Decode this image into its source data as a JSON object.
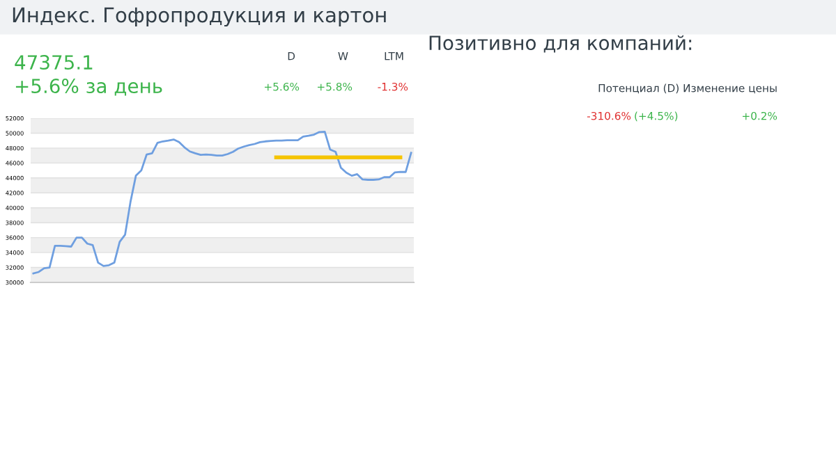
{
  "chart_data": [
    {
      "type": "line",
      "title": "Индекс. Гофропродукция и картон",
      "annotations": [
        "47375.1",
        "+5.6% за день",
        "D",
        "W",
        "LTM",
        "+5.6%",
        "+5.8%",
        "-1.3%"
      ],
      "categories": [
        null,
        null,
        null,
        null,
        null,
        null,
        null,
        null,
        null,
        null,
        null,
        null,
        null,
        null,
        null,
        null,
        null,
        null,
        null,
        null,
        null,
        null,
        null,
        null,
        null,
        null,
        null,
        null,
        null,
        null,
        null,
        null,
        null,
        null,
        null,
        null,
        null,
        null,
        null,
        null,
        null,
        null,
        null,
        null,
        null,
        null,
        null,
        null,
        null,
        null,
        null,
        null,
        null,
        null,
        null,
        null,
        null,
        null,
        null,
        null,
        null,
        null,
        null,
        null,
        null,
        null,
        null,
        null,
        null,
        null,
        null
      ],
      "series": [
        {
          "color": "#6f9fe0",
          "values": [
            31200,
            31400,
            31900,
            32000,
            34900,
            34900,
            34850,
            34800,
            36000,
            36000,
            35200,
            35000,
            32650,
            32200,
            32300,
            32650,
            35450,
            36400,
            40800,
            44300,
            45000,
            47150,
            47300,
            48700,
            48900,
            49000,
            49150,
            48800,
            48100,
            47550,
            47300,
            47100,
            47150,
            47100,
            47000,
            47000,
            47200,
            47500,
            47950,
            48200,
            48400,
            48550,
            48800,
            48900,
            48950,
            49000,
            49000,
            49050,
            49050,
            49050,
            49550,
            49650,
            49800,
            50150,
            50200,
            47800,
            47500,
            45350,
            44700,
            44300,
            44500,
            43800,
            43750,
            43750,
            43800,
            44100,
            44100,
            44750,
            44800,
            44800,
            47375.1
          ]
        },
        {
          "color": "#f5c400",
          "values": [
            null,
            null,
            null,
            null,
            null,
            null,
            null,
            null,
            null,
            null,
            null,
            null,
            null,
            null,
            null,
            null,
            null,
            null,
            null,
            null,
            null,
            null,
            null,
            null,
            null,
            null,
            null,
            null,
            null,
            null,
            null,
            null,
            null,
            null,
            null,
            null,
            null,
            null,
            null,
            null,
            null,
            null,
            null,
            null,
            null,
            46750,
            46750,
            46750,
            46750,
            46750,
            46750,
            46750,
            46750,
            46750,
            46750,
            46750,
            46750,
            46750,
            46750,
            46750,
            46750,
            46750,
            46750,
            46750,
            46750,
            46750,
            46750,
            46750,
            46750,
            null,
            null
          ]
        }
      ],
      "ylim": [
        30000,
        52000
      ],
      "yticks": [
        30000,
        32000,
        34000,
        36000,
        38000,
        40000,
        42000,
        44000,
        46000,
        48000,
        50000,
        52000
      ],
      "grid": "y",
      "tick_labels": "y"
    },
    {
      "type": "other",
      "title": "Позитивно для компаний:",
      "annotations": [
        "Потенциал (D) Изменение цены",
        "-310.6%",
        "(+4.5%)",
        "+0.2%"
      ]
    }
  ]
}
